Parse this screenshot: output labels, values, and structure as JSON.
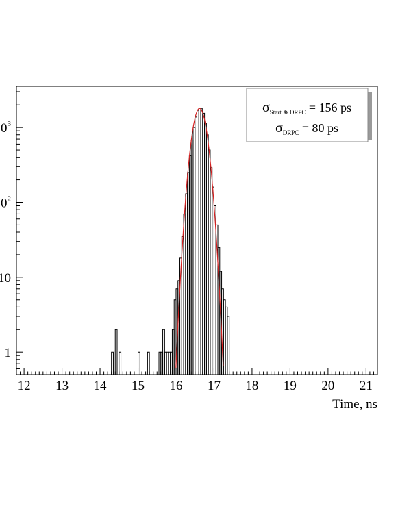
{
  "chart_data": {
    "type": "histogram",
    "xlabel": "Time, ns",
    "ylabel": "",
    "xlim": [
      11.8,
      21.3
    ],
    "ylim_log10": [
      -0.3,
      3.55
    ],
    "log_y": true,
    "x_ticks": [
      12,
      13,
      14,
      15,
      16,
      17,
      18,
      19,
      20,
      21
    ],
    "y_ticks": [
      {
        "value": 1,
        "base": "1",
        "exp": ""
      },
      {
        "value": 10,
        "base": "10",
        "exp": ""
      },
      {
        "value": 100,
        "base": "10",
        "exp": "2"
      },
      {
        "value": 1000,
        "base": "10",
        "exp": "3"
      }
    ],
    "histogram": {
      "bin_width": 0.05,
      "bins": [
        [
          14.3,
          1
        ],
        [
          14.4,
          2
        ],
        [
          14.5,
          1
        ],
        [
          15.0,
          1
        ],
        [
          15.25,
          1
        ],
        [
          15.55,
          1
        ],
        [
          15.6,
          1
        ],
        [
          15.65,
          2
        ],
        [
          15.7,
          1
        ],
        [
          15.75,
          1
        ],
        [
          15.8,
          1
        ],
        [
          15.85,
          1
        ],
        [
          15.9,
          2
        ],
        [
          15.95,
          5
        ],
        [
          16.0,
          7
        ],
        [
          16.05,
          9
        ],
        [
          16.1,
          18
        ],
        [
          16.15,
          35
        ],
        [
          16.2,
          70
        ],
        [
          16.25,
          130
        ],
        [
          16.3,
          250
        ],
        [
          16.35,
          420
        ],
        [
          16.4,
          680
        ],
        [
          16.45,
          1000
        ],
        [
          16.5,
          1380
        ],
        [
          16.55,
          1700
        ],
        [
          16.6,
          1800
        ],
        [
          16.65,
          1780
        ],
        [
          16.7,
          1550
        ],
        [
          16.75,
          1150
        ],
        [
          16.8,
          800
        ],
        [
          16.85,
          500
        ],
        [
          16.9,
          290
        ],
        [
          16.95,
          160
        ],
        [
          17.0,
          90
        ],
        [
          17.05,
          50
        ],
        [
          17.1,
          25
        ],
        [
          17.15,
          12
        ],
        [
          17.2,
          7
        ],
        [
          17.25,
          5
        ],
        [
          17.3,
          4
        ],
        [
          17.35,
          3
        ]
      ]
    },
    "fit": {
      "type": "gaussian",
      "color": "#d42020",
      "amplitude": 1800,
      "mean": 16.62,
      "sigma": 0.156
    },
    "legend": {
      "placement": "top-right",
      "lines": [
        {
          "symbol": "σ",
          "subscript": "Start ⊕ DRPC",
          "text": " = 156 ps"
        },
        {
          "symbol": "σ",
          "subscript": "DRPC",
          "text": " = 80 ps"
        }
      ]
    },
    "colors": {
      "histogram": "#000000",
      "fit": "#d42020",
      "legend_shadow": "#9a9a9a"
    }
  }
}
